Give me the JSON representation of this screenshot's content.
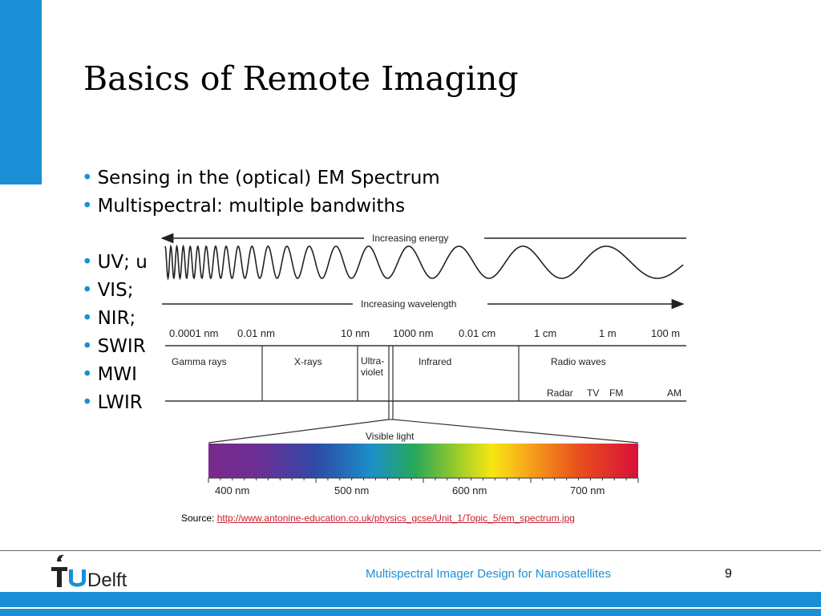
{
  "slide": {
    "title": "Basics of Remote Imaging",
    "bullets": [
      "Sensing in the (optical) EM Spectrum",
      "Multispectral: multiple bandwiths",
      "",
      "UV; u",
      "VIS;",
      "NIR;",
      "SWIR",
      "MWI",
      "LWIR"
    ],
    "bullet_symbol": "•"
  },
  "diagram": {
    "energy_label": "Increasing energy",
    "wavelength_label": "Increasing wavelength",
    "scale_ticks": [
      "0.0001 nm",
      "0.01 nm",
      "10 nm",
      "1000 nm",
      "0.01 cm",
      "1 cm",
      "1 m",
      "100 m"
    ],
    "bands": [
      "Gamma rays",
      "X-rays",
      "Ultra-",
      "violet",
      "Infrared",
      "Radio waves"
    ],
    "radio_sub": [
      "Radar",
      "TV",
      "FM",
      "AM"
    ],
    "visible_label": "Visible light",
    "visible_ticks": [
      "400 nm",
      "500 nm",
      "600 nm",
      "700 nm"
    ]
  },
  "source": {
    "prefix": "Source: ",
    "link": "http://www.antonine-education.co.uk/physics_gcse/Unit_1/Topic_5/em_spectrum.jpg"
  },
  "footer": {
    "logo_text": "TUDelft",
    "title": "Multispectral Imager Design for Nanosatellites",
    "page_number": "9"
  },
  "colors": {
    "accent": "#1b8fd6",
    "link": "#c8202f"
  }
}
